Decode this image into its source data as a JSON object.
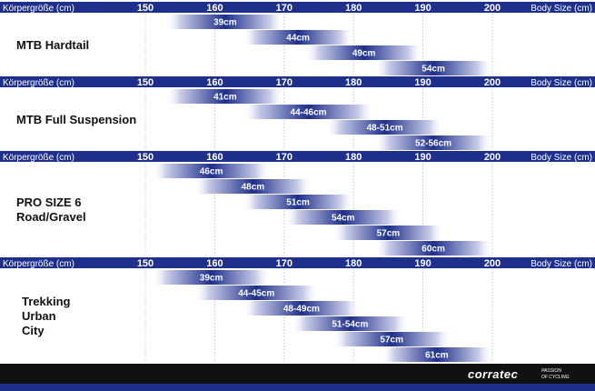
{
  "header": {
    "left_label": "Körpergröße (cm)",
    "right_label": "Body Size (cm)",
    "ticks": [
      "150",
      "160",
      "170",
      "180",
      "190",
      "200"
    ]
  },
  "colors": {
    "header_bg": "#1f2f8c",
    "bar_dark": "#1f2f8c",
    "bar_light": "#ffffff",
    "grid": "#b8b8c8",
    "footer_bg": "#111111",
    "footer_stripe": "#1f2f8c"
  },
  "footer": {
    "brand": "corratec",
    "tagline_1": "PASSION",
    "tagline_2": "OF CYCLING"
  },
  "chart_data": [
    {
      "type": "bar",
      "title_lines": [
        "MTB Hardtail"
      ],
      "xlim": [
        150,
        200
      ],
      "bars": [
        {
          "label": "39cm",
          "from": 153,
          "to": 170
        },
        {
          "label": "44cm",
          "from": 164,
          "to": 180
        },
        {
          "label": "49cm",
          "from": 173,
          "to": 190
        },
        {
          "label": "54cm",
          "from": 183,
          "to": 200
        }
      ]
    },
    {
      "type": "bar",
      "title_lines": [
        "MTB Full Suspension"
      ],
      "xlim": [
        150,
        200
      ],
      "bars": [
        {
          "label": "41cm",
          "from": 153,
          "to": 170
        },
        {
          "label": "44-46cm",
          "from": 164,
          "to": 183
        },
        {
          "label": "48-51cm",
          "from": 176,
          "to": 193
        },
        {
          "label": "52-56cm",
          "from": 183,
          "to": 200
        }
      ]
    },
    {
      "type": "bar",
      "title_lines": [
        "PRO SIZE 6",
        "Road/Gravel"
      ],
      "xlim": [
        150,
        200
      ],
      "bars": [
        {
          "label": "46cm",
          "from": 151,
          "to": 168
        },
        {
          "label": "48cm",
          "from": 157,
          "to": 174
        },
        {
          "label": "51cm",
          "from": 164,
          "to": 180
        },
        {
          "label": "54cm",
          "from": 170,
          "to": 187
        },
        {
          "label": "57cm",
          "from": 177,
          "to": 193
        },
        {
          "label": "60cm",
          "from": 183,
          "to": 200
        }
      ]
    },
    {
      "type": "bar",
      "title_lines": [
        "Trekking",
        "Urban",
        "City"
      ],
      "xlim": [
        150,
        200
      ],
      "bars": [
        {
          "label": "39cm",
          "from": 151,
          "to": 168
        },
        {
          "label": "44-45cm",
          "from": 157,
          "to": 175
        },
        {
          "label": "48-49cm",
          "from": 164,
          "to": 181
        },
        {
          "label": "51-54cm",
          "from": 171,
          "to": 188
        },
        {
          "label": "57cm",
          "from": 177,
          "to": 194
        },
        {
          "label": "61cm",
          "from": 184,
          "to": 200
        }
      ]
    }
  ]
}
